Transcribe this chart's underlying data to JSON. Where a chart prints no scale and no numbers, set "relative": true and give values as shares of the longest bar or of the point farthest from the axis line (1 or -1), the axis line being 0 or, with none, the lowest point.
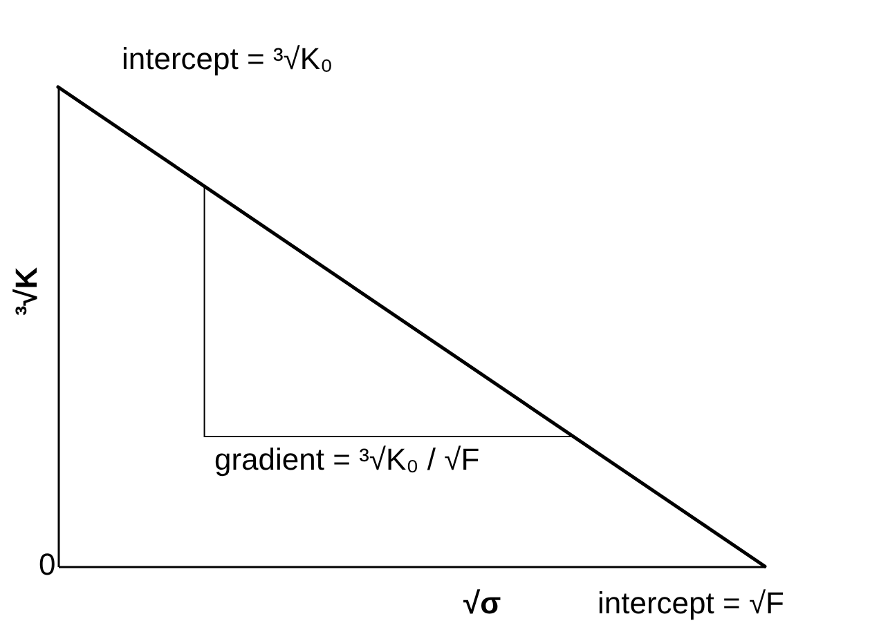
{
  "chart_data": {
    "type": "line",
    "relative": true,
    "xlabel": "√σ",
    "ylabel": "³√K",
    "categories": [
      null,
      null
    ],
    "series": [
      {
        "color": "#000000",
        "values": [
          1,
          0
        ]
      }
    ],
    "annotations": [
      "intercept = ³√K₀",
      "gradient = ³√K₀ / √F",
      "intercept = √F",
      "0"
    ]
  }
}
